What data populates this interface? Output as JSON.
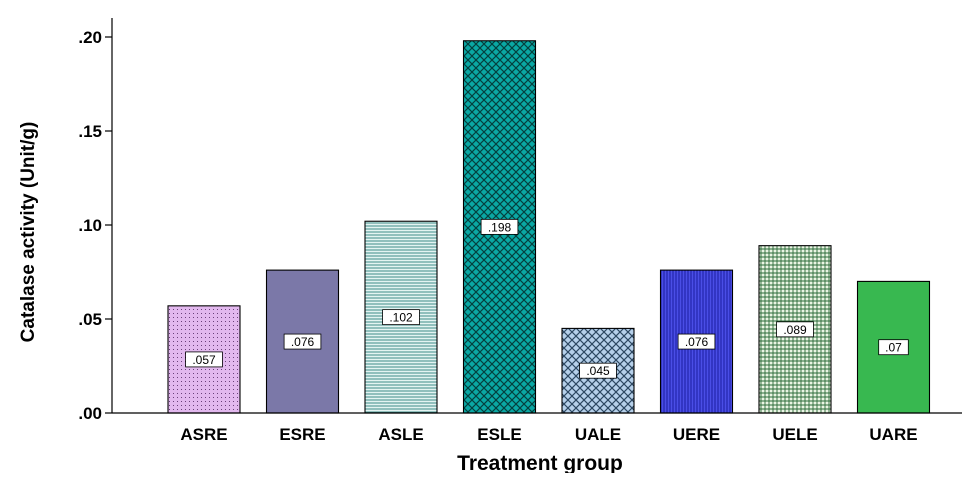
{
  "chart_data": {
    "type": "bar",
    "title": "",
    "xlabel": "Treatment group",
    "ylabel": "Catalase activity (Unit/g)",
    "ylim": [
      0,
      0.2
    ],
    "yticks": [
      {
        "value": 0.0,
        "label": ".00"
      },
      {
        "value": 0.05,
        "label": ".05"
      },
      {
        "value": 0.1,
        "label": ".10"
      },
      {
        "value": 0.15,
        "label": ".15"
      },
      {
        "value": 0.2,
        "label": ".20"
      }
    ],
    "grid": false,
    "legend": "none",
    "categories": [
      "ASRE",
      "ESRE",
      "ASLE",
      "ESLE",
      "UALE",
      "UERE",
      "UELE",
      "UARE"
    ],
    "values": [
      0.057,
      0.076,
      0.102,
      0.198,
      0.045,
      0.076,
      0.089,
      0.07
    ],
    "value_labels": [
      ".057",
      ".076",
      ".102",
      ".198",
      ".045",
      ".076",
      ".089",
      ".07"
    ],
    "bar_styles": [
      {
        "fill": "#e2b8ee",
        "pattern": "dots",
        "pattern_color": "#6a3f7a"
      },
      {
        "fill": "#7b78a8",
        "pattern": "none",
        "pattern_color": "#4a4870"
      },
      {
        "fill": "#e4f4f2",
        "pattern": "hlines",
        "pattern_color": "#3e8c88"
      },
      {
        "fill": "#0aa8a4",
        "pattern": "crosshatch",
        "pattern_color": "#04403e"
      },
      {
        "fill": "#b6d0ea",
        "pattern": "crosshatch",
        "pattern_color": "#2d4862"
      },
      {
        "fill": "#4a4ee6",
        "pattern": "vlines",
        "pattern_color": "#1a1ca0"
      },
      {
        "fill": "#eaf5e4",
        "pattern": "grid",
        "pattern_color": "#2a6a38"
      },
      {
        "fill": "#38b850",
        "pattern": "none",
        "pattern_color": "#1f7a32"
      }
    ]
  }
}
